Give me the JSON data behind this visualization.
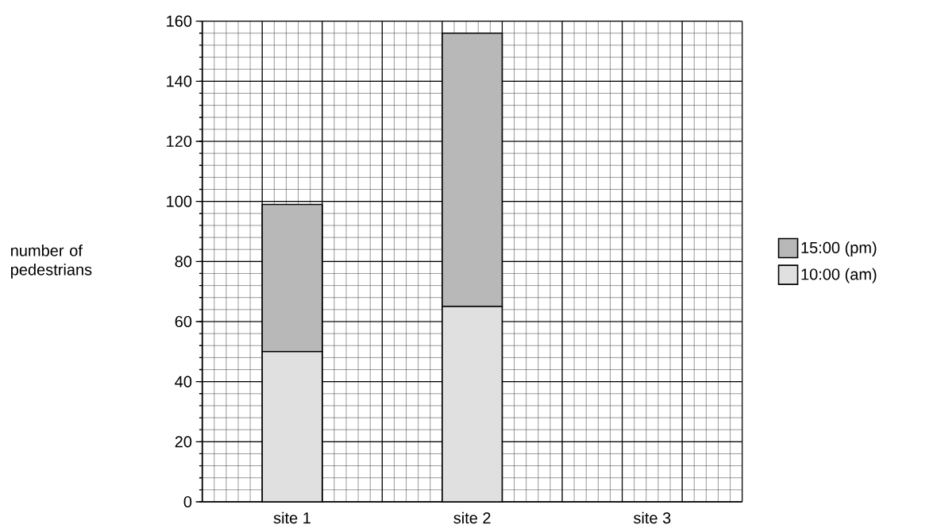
{
  "chart_data": {
    "type": "bar",
    "stacked": true,
    "ylabel": "number of pedestrians",
    "categories": [
      "site 1",
      "site 2",
      "site 3"
    ],
    "series": [
      {
        "name": "10:00 (am)",
        "color": "#e0e0e0",
        "values": [
          50,
          65,
          null
        ]
      },
      {
        "name": "15:00 (pm)",
        "color": "#b8b8b8",
        "values": [
          49,
          91,
          null
        ]
      }
    ],
    "ylim": [
      0,
      160
    ],
    "yticks": [
      0,
      20,
      40,
      60,
      80,
      100,
      120,
      140,
      160
    ],
    "grid": true,
    "legend": "right"
  }
}
